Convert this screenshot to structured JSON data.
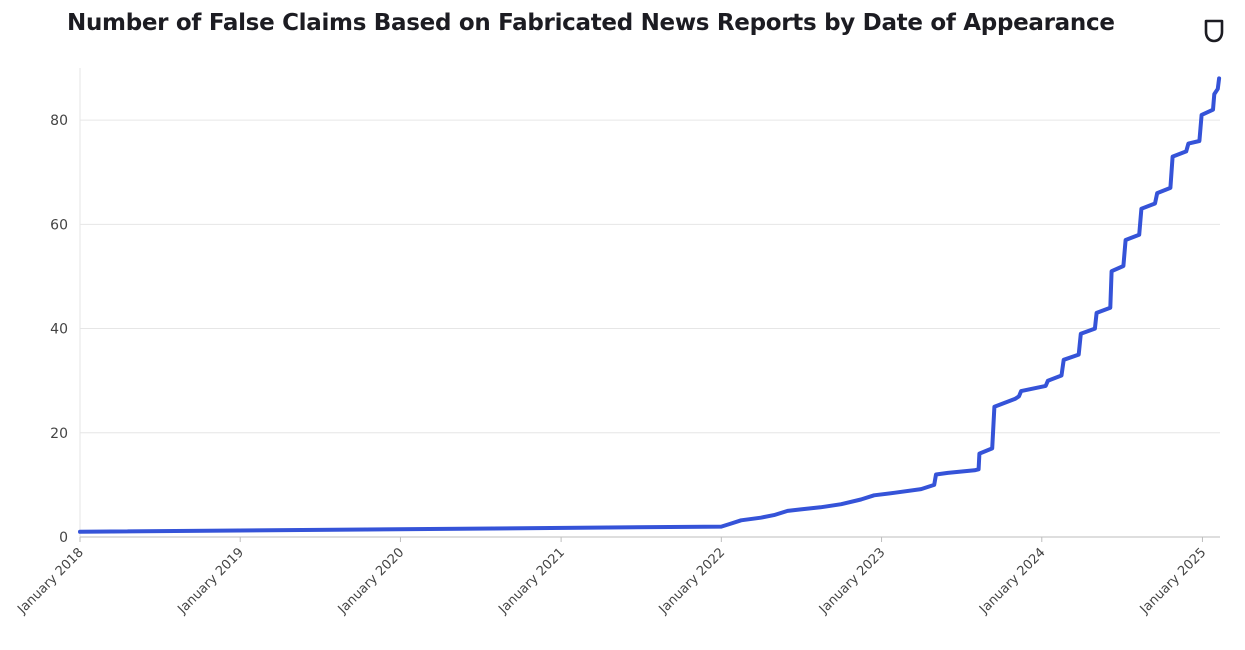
{
  "chart_data": {
    "type": "line",
    "title": "Number of False Claims Based on Fabricated News Reports by Date of Appearance",
    "xlabel": "",
    "ylabel": "",
    "ylim": [
      0,
      90
    ],
    "yticks": [
      0,
      20,
      40,
      60,
      80
    ],
    "xlim": [
      "2018-01-01",
      "2025-02-10"
    ],
    "xticks": [
      {
        "date": "2018-01-01",
        "label": "January 2018"
      },
      {
        "date": "2019-01-01",
        "label": "January 2019"
      },
      {
        "date": "2020-01-01",
        "label": "January 2020"
      },
      {
        "date": "2021-01-01",
        "label": "January 2021"
      },
      {
        "date": "2022-01-01",
        "label": "January 2022"
      },
      {
        "date": "2023-01-01",
        "label": "January 2023"
      },
      {
        "date": "2024-01-01",
        "label": "January 2024"
      },
      {
        "date": "2025-01-01",
        "label": "January 2025"
      }
    ],
    "grid": "horizontal",
    "colors": {
      "line": "#3553d8",
      "grid": "#e6e6e6",
      "text": "#444444",
      "title": "#1c1c22"
    },
    "series": [
      {
        "points": [
          [
            "2018-01-01",
            1
          ],
          [
            "2022-01-01",
            2
          ],
          [
            "2022-01-20",
            2.5
          ],
          [
            "2022-02-15",
            3.2
          ],
          [
            "2022-04-01",
            3.7
          ],
          [
            "2022-05-01",
            4.2
          ],
          [
            "2022-06-01",
            5
          ],
          [
            "2022-07-01",
            5.3
          ],
          [
            "2022-08-15",
            5.7
          ],
          [
            "2022-10-01",
            6.3
          ],
          [
            "2022-11-15",
            7.2
          ],
          [
            "2022-12-15",
            8
          ],
          [
            "2023-02-01",
            8.5
          ],
          [
            "2023-04-01",
            9.2
          ],
          [
            "2023-05-01",
            10
          ],
          [
            "2023-05-05",
            12
          ],
          [
            "2023-06-01",
            12.3
          ],
          [
            "2023-08-01",
            12.8
          ],
          [
            "2023-08-10",
            13
          ],
          [
            "2023-08-12",
            16
          ],
          [
            "2023-09-10",
            17
          ],
          [
            "2023-09-15",
            25
          ],
          [
            "2023-11-01",
            26.5
          ],
          [
            "2023-11-10",
            27
          ],
          [
            "2023-11-15",
            28
          ],
          [
            "2024-01-10",
            29
          ],
          [
            "2024-01-15",
            30
          ],
          [
            "2024-02-15",
            31
          ],
          [
            "2024-02-20",
            34
          ],
          [
            "2024-03-25",
            35
          ],
          [
            "2024-03-30",
            39
          ],
          [
            "2024-05-01",
            40
          ],
          [
            "2024-05-05",
            43
          ],
          [
            "2024-06-05",
            44
          ],
          [
            "2024-06-08",
            51
          ],
          [
            "2024-07-05",
            52
          ],
          [
            "2024-07-10",
            57
          ],
          [
            "2024-08-10",
            58
          ],
          [
            "2024-08-15",
            63
          ],
          [
            "2024-09-15",
            64
          ],
          [
            "2024-09-20",
            66
          ],
          [
            "2024-10-20",
            67
          ],
          [
            "2024-10-25",
            73
          ],
          [
            "2024-11-25",
            74
          ],
          [
            "2024-11-30",
            75.5
          ],
          [
            "2024-12-25",
            76
          ],
          [
            "2024-12-30",
            81
          ],
          [
            "2025-01-25",
            82
          ],
          [
            "2025-01-28",
            85
          ],
          [
            "2025-02-05",
            86
          ],
          [
            "2025-02-08",
            88
          ]
        ]
      }
    ]
  }
}
